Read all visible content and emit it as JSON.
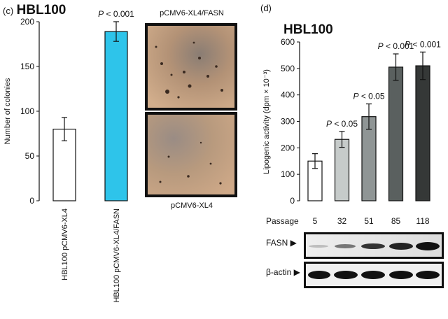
{
  "panel_c": {
    "letter": "(c)",
    "title": "HBL100",
    "photo_top_caption": "pCMV6-XL4/FASN",
    "photo_bottom_caption": "pCMV6-XL4"
  },
  "panel_d": {
    "letter": "(d)",
    "title": "HBL100",
    "passage_label": "Passage",
    "blot_labels": [
      "FASN ▶",
      "β-actin ▶"
    ]
  },
  "chart_data": [
    {
      "type": "bar",
      "ylabel": "Number of colonies",
      "ylim": [
        0,
        200
      ],
      "yticks": [
        0,
        50,
        100,
        150,
        200
      ],
      "categories": [
        "HBL100 pCMV6-XL4",
        "HBL100 pCMV6-XL4/FASN"
      ],
      "values": [
        80,
        189
      ],
      "errors": [
        13,
        11
      ],
      "annotations": [
        "",
        "P < 0.001"
      ],
      "colors": [
        "#ffffff",
        "#2ec4ea"
      ]
    },
    {
      "type": "bar",
      "title": "HBL100",
      "ylabel": "Lipogenic activity (dpm × 10⁻³)",
      "xlabel": "Passage",
      "ylim": [
        0,
        600
      ],
      "yticks": [
        0,
        100,
        200,
        300,
        400,
        500,
        600
      ],
      "categories": [
        "5",
        "32",
        "51",
        "85",
        "118"
      ],
      "values": [
        150,
        232,
        318,
        505,
        510
      ],
      "errors": [
        28,
        30,
        48,
        50,
        52
      ],
      "annotations": [
        "",
        "P < 0.05",
        "P < 0.05",
        "P < 0.001",
        "P < 0.001"
      ],
      "colors": [
        "#ffffff",
        "#c6cbca",
        "#8f9595",
        "#5a605f",
        "#353837"
      ]
    }
  ]
}
